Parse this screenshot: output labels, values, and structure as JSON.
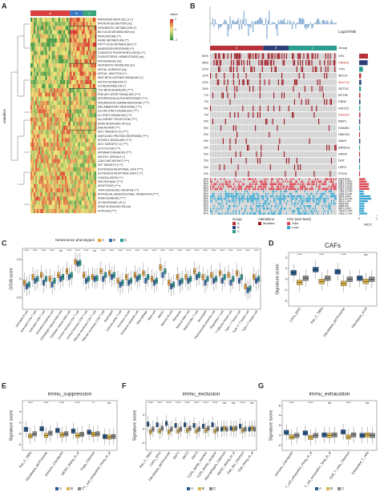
{
  "panels": {
    "a": "A",
    "b": "B",
    "c": "C",
    "d": "D",
    "e": "E",
    "f": "F",
    "g": "G"
  },
  "heatmap": {
    "groups": [
      "A",
      "B",
      "C"
    ],
    "group_colors": [
      "#d94040",
      "#3a77c0",
      "#3aa57a"
    ],
    "legend_title": "value",
    "legend_ticks": [
      2,
      0,
      -2
    ],
    "y_label": "variables",
    "rows": [
      "PANCREAS BETA CELLS (*)",
      "PROTEIN SECRETION (ns)",
      "XENOBIOTIC METABOLISM (*)",
      "BILE ACID METABOLISM (ns)",
      "PEROXISOME (**)",
      "HEME METABOLISM (**)",
      "FATTY ACID METABOLISM (**)",
      "ANDROGEN RESPONSE (**)",
      "OXIDATIVE PHOSPHORYLATION (***)",
      "CHOLESTEROL HOMEOSTASIS (ns)",
      "MYOGENESIS (ns)",
      "HEDGEHOG SIGNALING (ns)",
      "APICAL SURFACE (ns)",
      "APICAL JUNCTION (**)",
      "WNT BETA CATENIN SIGNALING (*)",
      "NOTCH SIGNALING (*)",
      "UV RESPONSE DN (*)",
      "TGF BETA SIGNALING (****)",
      "PI3K AKT MTOR SIGNALING (****)",
      "INTERFERON ALPHA RESPONSE (****)",
      "INTERFERON GAMMA RESPONSE (****)",
      "INFLAMMATORY RESPONSE (****)",
      "IL6 JAK STAT3 SIGNALING (****)",
      "IL2 STAT5 SIGNALING (***)",
      "ALLOGRAFT REJECTION (****)",
      "KRAS SIGNALING UP (ns)",
      "DNA REPAIR (***)",
      "MYC TARGETS V2 (****)",
      "UNFOLDED PROTEIN RESPONSE (****)",
      "MTORC1 SIGNALING (****)",
      "MYC TARGETS V1 (****)",
      "GLYCOLYSIS (***)",
      "SPERMATOGENESIS (****)",
      "MITOTIC SPINDLE (*)",
      "G2M CHECKPOINT (****)",
      "E2F TARGETS (****)",
      "ESTROGEN RESPONSE LATE (****)",
      "ESTROGEN RESPONSE EARLY (**)",
      "COAGULATION (***)",
      "P53 PATHWAY (****)",
      "APOPTOSIS (****)",
      "TNFA SIGNALING VIA NFKB (***)",
      "EPITHELIAL MESENCHYMAL TRANSITION (****)",
      "ANGIOGENESIS (****)",
      "UV RESPONSE UP (*)",
      "KRAS SIGNALING DN (ns)",
      "HYPOXIA (****)"
    ]
  },
  "oncoplot": {
    "tmb_label": "Log10TMB",
    "group_title": "Group",
    "groups": [
      "A",
      "B",
      "C"
    ],
    "group_colors": [
      "#b8323a",
      "#2c3e78",
      "#2a9d8f"
    ],
    "genes": [
      "VHL",
      "PBRM1",
      "TTN",
      "MUC4",
      "MUC16",
      "SETD2",
      "MTOR",
      "FBN2",
      "KMT2C",
      "DNAH9",
      "BAP1",
      "KDM5C",
      "HMCN1",
      "NAV3",
      "ARID1A",
      "SPEN",
      "DST",
      "LRP2",
      "PTEN"
    ],
    "gene_pct": [
      50,
      48,
      21,
      11,
      12,
      10,
      7,
      7,
      6,
      7,
      6,
      5,
      5,
      6,
      5,
      5,
      5,
      5,
      5
    ],
    "gene_pct_labels": [
      "50%",
      "48%",
      "21%",
      "11%",
      "12%",
      "10%",
      "7%",
      "7%",
      "6%",
      "7%",
      "6%",
      "5%",
      "5%",
      "6%",
      "5%",
      "5%",
      "5%",
      "5%",
      "5%"
    ],
    "cna": [
      "5q15-Amp",
      "5q31.3-Amp",
      "5q23.3-Amp",
      "5q23.2-Amp",
      "5q22.3-Amp",
      "1p36.13-Del",
      "1p36.11-Del",
      "3p25.3-Del",
      "3p21.31-Del",
      "3p12.1-Del",
      "4q26-Del",
      "4q28-Del",
      "9p21.3-Del",
      "13q13.3-Del",
      "14q31.1-Del"
    ],
    "cna_pct": [
      34,
      42,
      55,
      53,
      58,
      25,
      28,
      64,
      69,
      49,
      29,
      30,
      29,
      28,
      45
    ],
    "cna_pct_labels": [
      "34%",
      "42%",
      "55%",
      "53%",
      "58%",
      "25%",
      "28%",
      "64%",
      "69%",
      "49%",
      "29%",
      "30%",
      "29%",
      "28%",
      "45%"
    ],
    "alterations_title": "Alterations",
    "mutated_label": "Mutated",
    "mutated_color": "#9b1c24",
    "cna_title": "CNA (arm-level)",
    "gain_label": "Gain",
    "gain_color": "#d9434f",
    "loss_label": "Loss",
    "loss_color": "#3aa6d0",
    "pct_label": "PCT",
    "pct_ticks": [
      0,
      1
    ]
  },
  "immune": {
    "legend_title": "Senescence phenotypes",
    "groups": [
      "A",
      "B",
      "C"
    ],
    "colors": [
      "#e9a23b",
      "#3b6fb6",
      "#2aa198"
    ],
    "y_label": "GSVA score",
    "ylim": [
      -0.8,
      0.8
    ],
    "yticks": [
      -0.5,
      0,
      0.5
    ],
    "cells": [
      "Activated B cell",
      "Activated CD4 T cell",
      "Activated CD8 T cell",
      "Activated dendritic cell",
      "CD56bright natural killer cell",
      "CD56dim natural killer cell",
      "Central memory CD4 T cell",
      "Central memory CD8 T cell",
      "Effector memeory CD4 T cell",
      "Effector memeory CD8 T cell",
      "Eosinophil",
      "Gamma delta T cell",
      "Immature B cell",
      "Immature dendritic cell",
      "Macrophage",
      "Mast cell",
      "MDSC",
      "Memory B cell",
      "Monocyte",
      "Natural killer cell",
      "Natural killer T cell",
      "Neutrophil",
      "Plasmacytoid dendritic cell",
      "Regulatory T cell",
      "T follicular helper cell",
      "Type 1 T helper cell",
      "Type 17 T helper cell",
      "Type 2 T helper cell"
    ],
    "sig": [
      "****",
      "****",
      "****",
      "****",
      "ns",
      "****",
      "****",
      "****",
      "ns",
      "****",
      "****",
      "****",
      "****",
      "****",
      "****",
      "****",
      "****",
      "****",
      "****",
      "****",
      "****",
      "****",
      "****",
      "****",
      "****",
      "****",
      "****",
      "****"
    ],
    "medians": [
      [
        -0.1,
        0.05,
        0.1,
        0.0,
        0.1,
        0.2,
        0.45,
        0.1,
        0.05,
        0.2,
        0.15,
        -0.05,
        0.05,
        0.1,
        0.15,
        0.0,
        0.3,
        -0.1,
        0.05,
        0.05,
        0.2,
        0.05,
        0.1,
        0.15,
        0.1,
        0.15,
        -0.2,
        0.05
      ],
      [
        -0.2,
        -0.05,
        -0.1,
        -0.15,
        0.0,
        0.05,
        0.4,
        -0.05,
        0.0,
        0.0,
        0.05,
        -0.15,
        -0.1,
        0.0,
        -0.05,
        -0.1,
        0.1,
        -0.2,
        -0.1,
        -0.05,
        0.05,
        -0.1,
        -0.05,
        -0.05,
        -0.1,
        -0.05,
        -0.3,
        -0.05
      ],
      [
        -0.15,
        0.0,
        0.0,
        -0.05,
        0.05,
        0.1,
        0.42,
        0.0,
        0.02,
        0.1,
        0.1,
        -0.1,
        -0.05,
        0.05,
        0.05,
        -0.05,
        0.2,
        -0.15,
        -0.05,
        0.0,
        0.1,
        0.0,
        0.0,
        0.05,
        0.0,
        0.05,
        -0.25,
        0.0
      ]
    ]
  },
  "box_panels": [
    {
      "title": "CAFs",
      "y_label": "Signature score",
      "groups": [
        "A",
        "B",
        "C"
      ],
      "colors": [
        "#2a5a8c",
        "#d8b24a",
        "#8a8a8a"
      ],
      "ylim": [
        -2.5,
        2.5
      ],
      "yticks": [
        -2,
        -1,
        0,
        1,
        2
      ],
      "categories": [
        "CAFs_EPIC",
        "Pan_F_TBRs",
        "Fibroblasts_MCPcounter",
        "Fibroblasts_xCell"
      ],
      "sig": [
        "****",
        "****",
        "****",
        "ns"
      ],
      "medians": [
        [
          0.6,
          0.9,
          0.7,
          0.1
        ],
        [
          -0.3,
          -0.2,
          -0.4,
          -0.2
        ],
        [
          0.1,
          0.1,
          0.0,
          0.0
        ]
      ]
    },
    {
      "title": "immu_suppression",
      "y_label": "Signature score",
      "groups": [
        "A",
        "B",
        "C"
      ],
      "colors": [
        "#2a5a8c",
        "#d8b24a",
        "#8a8a8a"
      ],
      "ylim": [
        -3,
        6
      ],
      "yticks": [
        -2,
        0,
        2,
        4
      ],
      "categories": [
        "Pan_F_TBRs",
        "Fibroblasts_MCPcounter",
        "Immune_Checkpoint",
        "MDSC_Wang_et_al",
        "Tregs_Cibersort",
        "T_cell_exhaustion_Peng_et_al"
      ],
      "sig": [
        "****",
        "****",
        "****",
        "****",
        "**",
        "ns"
      ],
      "medians": [
        [
          0.8,
          0.9,
          0.6,
          0.5,
          0.3,
          -0.5
        ],
        [
          -0.4,
          -0.3,
          -0.2,
          -0.3,
          -0.1,
          -0.6
        ],
        [
          0.0,
          0.1,
          0.0,
          -0.1,
          0.0,
          -0.5
        ]
      ]
    },
    {
      "title": "immu_exclusion",
      "y_label": "Signature score",
      "groups": [
        "A",
        "B",
        "C"
      ],
      "colors": [
        "#2a5a8c",
        "#d8b24a",
        "#8a8a8a"
      ],
      "ylim": [
        -3,
        4
      ],
      "yticks": [
        -2,
        0,
        2
      ],
      "categories": [
        "Pan_F_TBRs",
        "CAFs_EPIC",
        "Fibroblasts_MCPcounter",
        "EMT1",
        "EMT2",
        "EMT3",
        "TGFb_family_member",
        "TGFb_family_receptor",
        "Macrophages_Cibersort",
        "MDSC_Wang_et_al",
        "TAM_M2_Cibersort",
        "TAM_Peng_et_al"
      ],
      "sig": [
        "****",
        "****",
        "****",
        "****",
        "****",
        "****",
        "****",
        "****",
        "ns",
        "ns",
        "****",
        "ns"
      ],
      "medians": [
        [
          0.7,
          0.6,
          0.8,
          0.5,
          0.6,
          0.5,
          0.4,
          0.6,
          0.0,
          0.1,
          0.4,
          0.0
        ],
        [
          -0.4,
          -0.3,
          -0.4,
          -0.3,
          -0.2,
          -0.3,
          -0.2,
          -0.3,
          0.1,
          0.0,
          -0.2,
          0.1
        ],
        [
          0.0,
          0.1,
          0.0,
          0.0,
          0.1,
          0.0,
          0.1,
          0.0,
          0.0,
          0.1,
          0.0,
          0.0
        ]
      ]
    },
    {
      "title": "immu_exhaustion",
      "y_label": "Signature score",
      "groups": [
        "A",
        "B",
        "C"
      ],
      "colors": [
        "#2a5a8c",
        "#d8b24a",
        "#8a8a8a"
      ],
      "ylim": [
        -3,
        7
      ],
      "yticks": [
        -2,
        0,
        2,
        4,
        6
      ],
      "categories": [
        "Immune_Checkpoint",
        "T_cell_exhaustion_Peng_et_al",
        "T_cell_exhaustion_Tang_et_al",
        "CD8_T_cells_Cibersort",
        "Exhausted_T_cells"
      ],
      "sig": [
        "****",
        "****",
        "ns",
        "****",
        "ns"
      ],
      "medians": [
        [
          0.6,
          0.5,
          0.1,
          0.7,
          0.0
        ],
        [
          -0.3,
          -0.4,
          0.0,
          -0.3,
          0.1
        ],
        [
          0.0,
          0.0,
          0.1,
          0.1,
          0.0
        ]
      ]
    }
  ]
}
